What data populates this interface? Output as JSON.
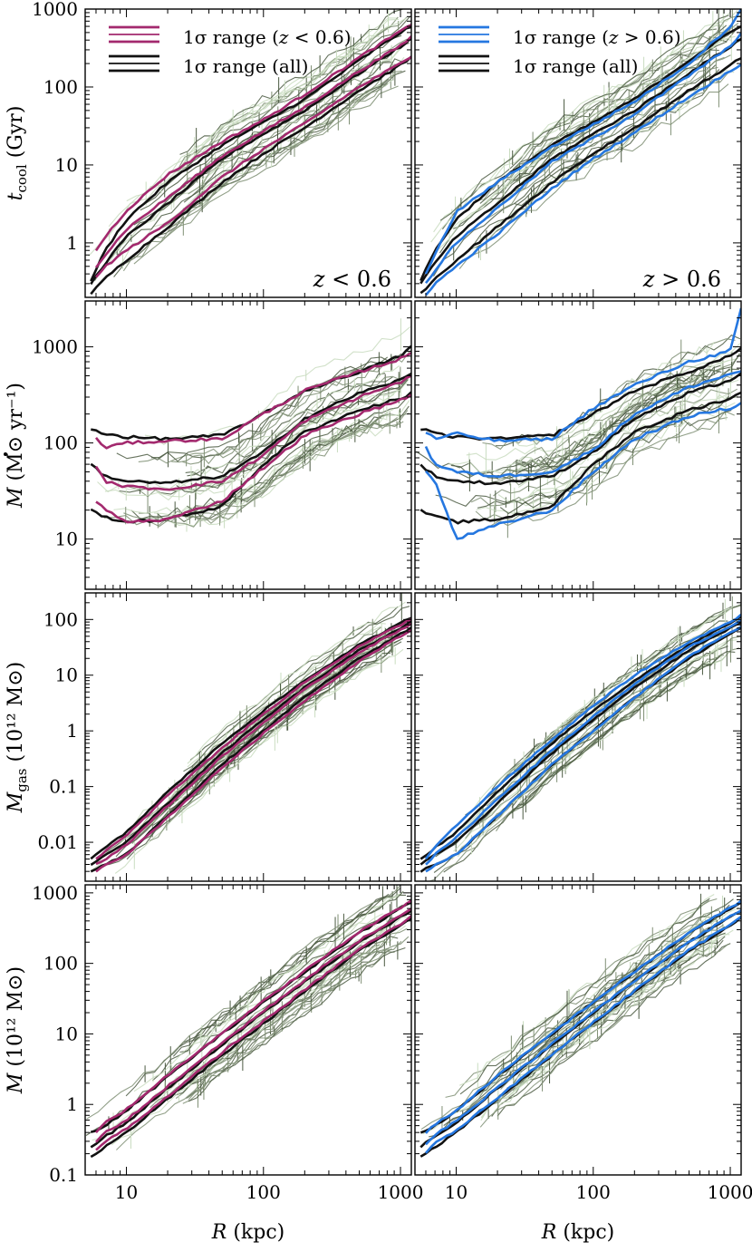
{
  "chart_data": {
    "type": "line",
    "colors": {
      "low_z": "#a3296e",
      "high_z": "#2577e0",
      "all": "#111111",
      "individual_dark": "#4b5a42",
      "individual_mid": "#7f8f74",
      "individual_light": "#c9dcc0"
    },
    "x_axis": {
      "scale": "log",
      "xlim": [
        5,
        1200
      ],
      "tick_labels": [
        "10",
        "100",
        "1000"
      ],
      "tick_values": [
        10,
        100,
        1000
      ]
    },
    "xlabel_var": "R",
    "xlabel_unit": "(kpc)",
    "columns": [
      {
        "annotation_var": "z",
        "annotation_rel": " < 0.6",
        "legend": [
          {
            "prefix": "1σ range (",
            "var": "z",
            "suffix": " < 0.6)",
            "color": "#a3296e"
          },
          {
            "prefix": "1σ range (all)",
            "var": "",
            "suffix": "",
            "color": "#111111"
          }
        ]
      },
      {
        "annotation_var": "z",
        "annotation_rel": " > 0.6",
        "legend": [
          {
            "prefix": "1σ range (",
            "var": "z",
            "suffix": " > 0.6)",
            "color": "#2577e0"
          },
          {
            "prefix": "1σ range (all)",
            "var": "",
            "suffix": "",
            "color": "#111111"
          }
        ]
      }
    ],
    "rows": [
      {
        "id": "tcool",
        "ylabel": {
          "var": "t",
          "sub": "cool",
          "rest": " (Gyr)",
          "dot": false
        },
        "yscale": "log",
        "ylim": [
          0.2,
          1000
        ],
        "tick_labels": [
          "1",
          "10",
          "100",
          "1000"
        ],
        "tick_values": [
          1,
          10,
          100,
          1000
        ],
        "series": {
          "all": {
            "x": [
              5.5,
              7,
              10,
              20,
              50,
              100,
              200,
              500,
              1000,
              1200
            ],
            "lower": [
              0.22,
              0.35,
              0.6,
              1.6,
              6,
              14,
              30,
              90,
              190,
              240
            ],
            "median": [
              0.3,
              0.55,
              1.2,
              3.2,
              12,
              25,
              50,
              150,
              330,
              420
            ],
            "upper": [
              0.33,
              0.8,
              2.0,
              6,
              18,
              35,
              70,
              220,
              500,
              600
            ]
          },
          "low_z": {
            "x": [
              6,
              7,
              10,
              20,
              50,
              100,
              200,
              500,
              1000,
              1200
            ],
            "lower": [
              0.35,
              0.5,
              0.8,
              1.8,
              7,
              16,
              34,
              100,
              200,
              250
            ],
            "median": [
              0.5,
              0.7,
              1.5,
              3.8,
              13,
              27,
              55,
              160,
              340,
              440
            ],
            "upper": [
              0.8,
              1.2,
              2.6,
              7.5,
              20,
              38,
              80,
              240,
              520,
              620
            ]
          },
          "high_z": {
            "x": [
              6,
              7,
              10,
              20,
              50,
              100,
              200,
              500,
              1000,
              1200
            ],
            "lower": [
              0.22,
              0.3,
              0.5,
              1.3,
              5,
              12,
              26,
              75,
              160,
              200
            ],
            "median": [
              0.3,
              0.45,
              1.0,
              2.8,
              11,
              22,
              45,
              140,
              330,
              500
            ],
            "upper": [
              0.4,
              0.7,
              2.5,
              6,
              17,
              33,
              65,
              200,
              600,
              1000
            ]
          }
        }
      },
      {
        "id": "mdot",
        "ylabel": {
          "var": "M",
          "sub": "",
          "rest": " (M⊙ yr⁻¹)",
          "dot": true
        },
        "yscale": "log",
        "ylim": [
          3,
          3000
        ],
        "tick_labels": [
          "10",
          "100",
          "1000"
        ],
        "tick_values": [
          10,
          100,
          1000
        ],
        "series": {
          "all": {
            "x": [
              5.5,
              7,
              10,
              20,
              50,
              100,
              200,
              500,
              1000,
              1200
            ],
            "lower": [
              20,
              17,
              15,
              16,
              22,
              60,
              130,
              220,
              290,
              330
            ],
            "median": [
              60,
              45,
              40,
              38,
              45,
              80,
              180,
              330,
              450,
              520
            ],
            "upper": [
              140,
              125,
              115,
              110,
              120,
              200,
              350,
              550,
              800,
              1000
            ]
          },
          "low_z": {
            "x": [
              6,
              7,
              10,
              20,
              50,
              100,
              200,
              500,
              1000,
              1200
            ],
            "lower": [
              25,
              20,
              15,
              16,
              25,
              55,
              120,
              200,
              280,
              320
            ],
            "median": [
              55,
              40,
              35,
              33,
              40,
              75,
              170,
              300,
              430,
              500
            ],
            "upper": [
              110,
              90,
              100,
              105,
              110,
              200,
              350,
              550,
              750,
              850
            ]
          },
          "high_z": {
            "x": [
              6,
              7,
              10,
              20,
              50,
              100,
              200,
              500,
              1000,
              1200
            ],
            "lower": [
              50,
              40,
              10,
              14,
              20,
              50,
              110,
              190,
              230,
              260
            ],
            "median": [
              90,
              60,
              50,
              45,
              50,
              85,
              200,
              380,
              520,
              560
            ],
            "upper": [
              130,
              110,
              125,
              105,
              110,
              230,
              400,
              700,
              900,
              2500
            ]
          }
        }
      },
      {
        "id": "mgas",
        "ylabel": {
          "var": "M",
          "sub": "gas",
          "rest": " (10¹² M⊙)",
          "dot": false
        },
        "yscale": "log",
        "ylim": [
          0.002,
          300
        ],
        "tick_labels": [
          "0.01",
          "0.1",
          "1",
          "10",
          "100"
        ],
        "tick_values": [
          0.01,
          0.1,
          1,
          10,
          100
        ],
        "series": {
          "all": {
            "x": [
              5.5,
              7,
              10,
              20,
              50,
              100,
              200,
              500,
              1000,
              1200
            ],
            "lower": [
              0.003,
              0.004,
              0.006,
              0.03,
              0.25,
              1.0,
              4,
              20,
              55,
              70
            ],
            "median": [
              0.004,
              0.006,
              0.01,
              0.05,
              0.4,
              1.6,
              6,
              28,
              70,
              90
            ],
            "upper": [
              0.005,
              0.008,
              0.015,
              0.08,
              0.6,
              2.3,
              8,
              35,
              85,
              110
            ]
          },
          "low_z": {
            "x": [
              6,
              7,
              10,
              20,
              50,
              100,
              200,
              500,
              1000,
              1200
            ],
            "lower": [
              0.003,
              0.004,
              0.006,
              0.028,
              0.22,
              0.9,
              3.5,
              18,
              50,
              65
            ],
            "median": [
              0.004,
              0.005,
              0.009,
              0.045,
              0.35,
              1.4,
              5.5,
              26,
              65,
              85
            ],
            "upper": [
              0.005,
              0.007,
              0.013,
              0.07,
              0.5,
              2.0,
              7.5,
              33,
              80,
              100
            ]
          },
          "high_z": {
            "x": [
              6,
              7,
              10,
              20,
              50,
              100,
              200,
              500,
              1000,
              1200
            ],
            "lower": [
              0.003,
              0.004,
              0.006,
              0.03,
              0.25,
              1.0,
              4,
              22,
              60,
              75
            ],
            "median": [
              0.004,
              0.006,
              0.012,
              0.06,
              0.45,
              1.8,
              7,
              32,
              75,
              95
            ],
            "upper": [
              0.005,
              0.008,
              0.02,
              0.1,
              0.7,
              2.8,
              10,
              40,
              90,
              120
            ]
          }
        }
      },
      {
        "id": "mtot",
        "ylabel": {
          "var": "M",
          "sub": "",
          "rest": " (10¹² M⊙)",
          "dot": false
        },
        "yscale": "log",
        "ylim": [
          0.1,
          1300
        ],
        "tick_labels": [
          "0.1",
          "1",
          "10",
          "100",
          "1000"
        ],
        "tick_values": [
          0.1,
          1,
          10,
          100,
          1000
        ],
        "series": {
          "all": {
            "x": [
              5.5,
              7,
              10,
              20,
              50,
              100,
              200,
              500,
              1000,
              1200
            ],
            "lower": [
              0.18,
              0.25,
              0.4,
              1.2,
              5,
              14,
              40,
              150,
              350,
              450
            ],
            "median": [
              0.25,
              0.35,
              0.55,
              1.7,
              7,
              20,
              55,
              200,
              450,
              560
            ],
            "upper": [
              0.4,
              0.5,
              0.8,
              2.5,
              10,
              28,
              75,
              270,
              600,
              750
            ]
          },
          "low_z": {
            "x": [
              6,
              7,
              10,
              20,
              50,
              100,
              200,
              500,
              1000,
              1200
            ],
            "lower": [
              0.22,
              0.3,
              0.45,
              1.3,
              5.5,
              15,
              42,
              160,
              360,
              460
            ],
            "median": [
              0.3,
              0.4,
              0.6,
              1.8,
              7.5,
              21,
              58,
              210,
              470,
              580
            ],
            "upper": [
              0.4,
              0.55,
              0.85,
              2.6,
              10.5,
              29,
              78,
              280,
              620,
              780
            ]
          },
          "high_z": {
            "x": [
              6,
              7,
              10,
              20,
              50,
              100,
              200,
              500,
              1000,
              1200
            ],
            "lower": [
              0.2,
              0.28,
              0.42,
              1.25,
              5.2,
              14.5,
              41,
              155,
              355,
              455
            ],
            "median": [
              0.28,
              0.38,
              0.58,
              1.75,
              7.2,
              20.5,
              56,
              205,
              460,
              570
            ],
            "upper": [
              0.4,
              0.52,
              0.82,
              2.55,
              10.2,
              28.5,
              76,
              275,
              610,
              770
            ]
          }
        }
      }
    ]
  }
}
